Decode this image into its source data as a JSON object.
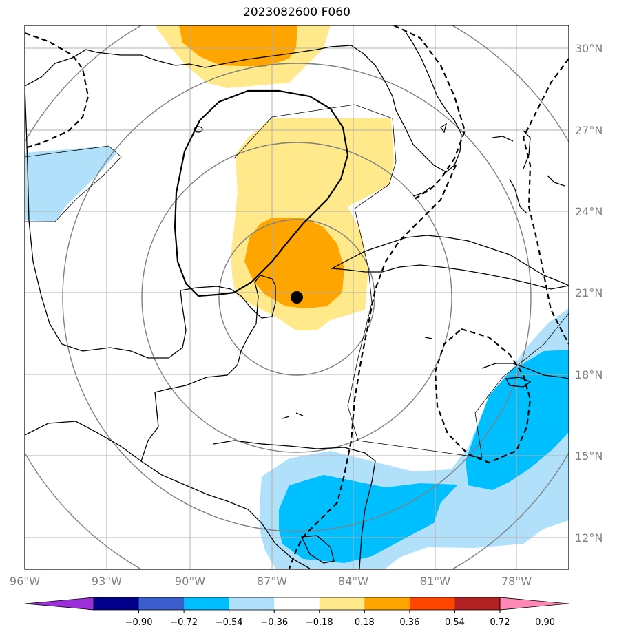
{
  "title": "2023082600 F060",
  "map": {
    "lon_labels": [
      "96°W",
      "93°W",
      "90°W",
      "87°W",
      "84°W",
      "81°W",
      "78°W"
    ],
    "lat_labels": [
      "30°N",
      "27°N",
      "24°N",
      "21°N",
      "18°N",
      "15°N",
      "12°N"
    ],
    "storm_center": {
      "lon": "86.3°W",
      "lat": "20.8°N"
    }
  },
  "colorbar": {
    "ticks": [
      "−0.90",
      "−0.72",
      "−0.54",
      "−0.36",
      "−0.18",
      "0.18",
      "0.36",
      "0.54",
      "0.72",
      "0.90"
    ],
    "colors": [
      "#9b30d9",
      "#00008b",
      "#3a5fcd",
      "#00bfff",
      "#b0e0fa",
      "#ffffff",
      "#ffe98a",
      "#ffa500",
      "#ff4500",
      "#b22222",
      "#ff88b4"
    ]
  }
}
